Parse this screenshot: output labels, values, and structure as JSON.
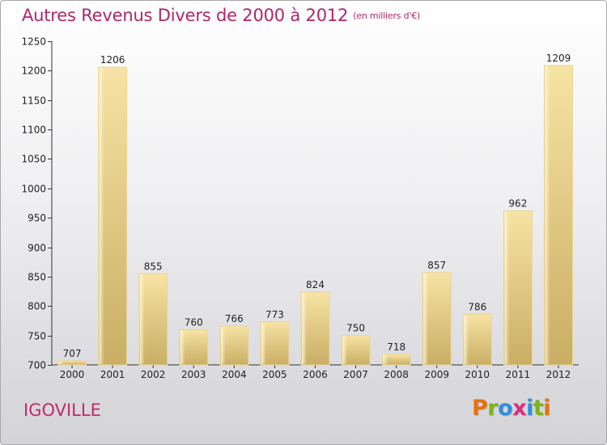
{
  "title": "Autres Revenus Divers de 2000 à 2012",
  "subtitle": "(en milliers d'€)",
  "place": "IGOVILLE",
  "logo": {
    "letters": [
      "P",
      "r",
      "o",
      "x",
      "i",
      "t",
      "i"
    ],
    "colors": [
      "#e6720d",
      "#7bb31b",
      "#2f8fd8",
      "#d82f7f",
      "#2f8fd8",
      "#7bb31b",
      "#e6720d"
    ]
  },
  "chart_data": {
    "type": "bar",
    "title": "Autres Revenus Divers de 2000 à 2012",
    "subtitle": "(en milliers d'€)",
    "xlabel": "",
    "ylabel": "",
    "categories": [
      "2000",
      "2001",
      "2002",
      "2003",
      "2004",
      "2005",
      "2006",
      "2007",
      "2008",
      "2009",
      "2010",
      "2011",
      "2012"
    ],
    "values": [
      707,
      1206,
      855,
      760,
      766,
      773,
      824,
      750,
      718,
      857,
      786,
      962,
      1209
    ],
    "ylim": [
      700,
      1250
    ],
    "yticks": [
      700,
      750,
      800,
      850,
      900,
      950,
      1000,
      1050,
      1100,
      1150,
      1200,
      1250
    ],
    "grid": false,
    "bar_color": "#e8cc82"
  }
}
